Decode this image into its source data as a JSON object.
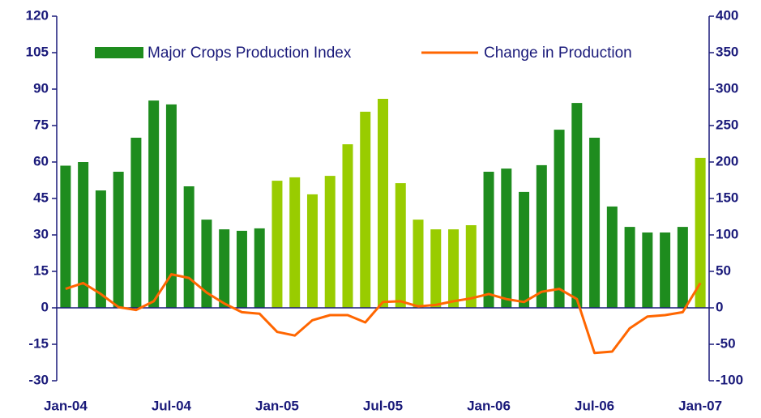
{
  "chart_data": {
    "type": "combo",
    "categories": [
      "Jan-04",
      null,
      null,
      null,
      null,
      null,
      "Jul-04",
      null,
      null,
      null,
      null,
      null,
      "Jan-05",
      null,
      null,
      null,
      null,
      null,
      "Jul-05",
      null,
      null,
      null,
      null,
      null,
      "Jan-06",
      null,
      null,
      null,
      null,
      null,
      "Jul-06",
      null,
      null,
      null,
      null,
      null,
      "Jan-07"
    ],
    "series": [
      {
        "name": "Major Crops Production Index",
        "type": "bar",
        "color": "#1e8c1e",
        "colors": [
          "#1e8c1e",
          "#1e8c1e",
          "#1e8c1e",
          "#1e8c1e",
          "#1e8c1e",
          "#1e8c1e",
          "#1e8c1e",
          "#1e8c1e",
          "#1e8c1e",
          "#1e8c1e",
          "#1e8c1e",
          "#1e8c1e",
          "#99cc00",
          "#99cc00",
          "#99cc00",
          "#99cc00",
          "#99cc00",
          "#99cc00",
          "#99cc00",
          "#99cc00",
          "#99cc00",
          "#99cc00",
          "#99cc00",
          "#99cc00",
          "#1e8c1e",
          "#1e8c1e",
          "#1e8c1e",
          "#1e8c1e",
          "#1e8c1e",
          "#1e8c1e",
          "#1e8c1e",
          "#1e8c1e",
          "#1e8c1e",
          "#1e8c1e",
          "#1e8c1e",
          "#1e8c1e",
          "#99cc00"
        ],
        "values": [
          58.5,
          60,
          48.3,
          56,
          70,
          85.3,
          83.7,
          50,
          36.3,
          32.3,
          31.7,
          32.7,
          52.3,
          53.7,
          46.7,
          54.3,
          67.3,
          80.7,
          86,
          51.3,
          36.3,
          32.3,
          32.3,
          34,
          56,
          57.3,
          47.7,
          58.7,
          73.3,
          84.3,
          70,
          41.7,
          33.3,
          31,
          31,
          33.3,
          61.7
        ]
      },
      {
        "name": "Change in Production",
        "type": "line",
        "color": "#ff6600",
        "axis": "y2",
        "values": [
          26,
          34,
          19,
          1,
          -3,
          9,
          46,
          41,
          21,
          6,
          -6,
          -8,
          -33,
          -38,
          -17,
          -10,
          -10,
          -20,
          8,
          9,
          2,
          4,
          9,
          13,
          19,
          12,
          8,
          22,
          26,
          12,
          -62,
          -60,
          -28,
          -12,
          -10,
          -6,
          34
        ]
      }
    ],
    "ylim": [
      -30,
      120
    ],
    "yticks": [
      -30,
      -15,
      0,
      15,
      30,
      45,
      60,
      75,
      90,
      105,
      120
    ],
    "y2lim": [
      -100,
      400
    ],
    "y2ticks": [
      -100,
      -50,
      0,
      50,
      100,
      150,
      200,
      250,
      300,
      350,
      400
    ],
    "grid": false
  }
}
